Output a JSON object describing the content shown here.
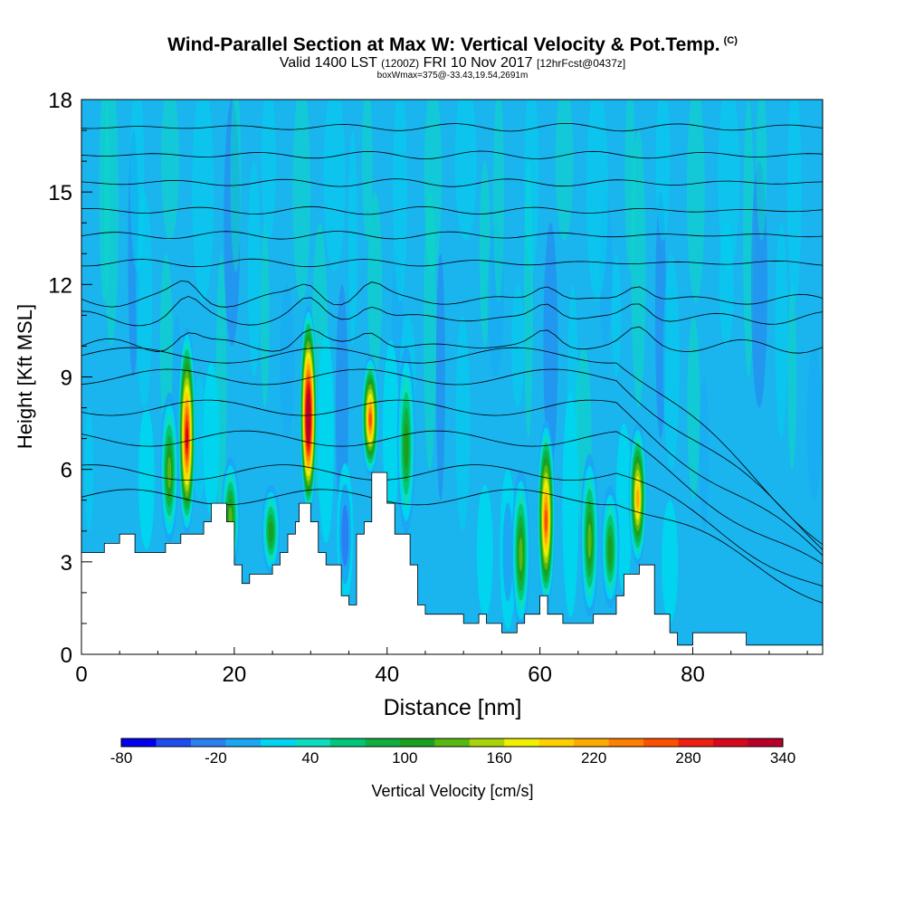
{
  "chart_data": {
    "type": "heatmap",
    "title": "Wind-Parallel Section at Max W: Vertical Velocity & Pot.Temp.",
    "copyright_mark": "(C)",
    "subtitle": {
      "valid": "Valid 1400 LST",
      "utc": "(1200Z)",
      "date": "FRI 10 Nov 2017",
      "forecast": "[12hrFcst@0437z]"
    },
    "subtitle2": "boxWmax=375@-33.43,19.54,2691m",
    "xlabel": "Distance [nm]",
    "ylabel": "Height [Kft MSL]",
    "xlim": [
      0,
      97
    ],
    "ylim": [
      0,
      18
    ],
    "x_ticks": [
      0,
      20,
      40,
      60,
      80
    ],
    "y_ticks": [
      0,
      3,
      6,
      9,
      12,
      15,
      18
    ],
    "colorbar": {
      "label": "Vertical Velocity [cm/s]",
      "tick_labels": [
        "-80",
        "-20",
        "40",
        "100",
        "160",
        "220",
        "280",
        "340"
      ],
      "colors": [
        "#0000ee",
        "#1e4cf0",
        "#2a80f2",
        "#1aa8f4",
        "#00d4ee",
        "#0cdcc0",
        "#00c878",
        "#10b040",
        "#18a020",
        "#58b810",
        "#a8d408",
        "#f0f000",
        "#ffd000",
        "#ffaa00",
        "#ff7f00",
        "#ff5000",
        "#ee2010",
        "#d8081c",
        "#b80028"
      ]
    },
    "background_color": "#1ab4ee",
    "terrain_color": "#ffffff",
    "terrain": {
      "x": [
        0,
        3,
        3,
        5,
        5,
        7,
        7,
        11,
        11,
        13,
        13,
        16,
        16,
        17,
        17,
        19,
        19,
        20,
        20,
        21,
        21,
        22,
        22,
        25,
        25,
        26,
        26,
        27,
        27,
        28,
        28,
        28.5,
        28.5,
        30,
        30,
        31,
        31,
        32,
        32,
        34,
        34,
        35,
        35,
        36,
        36,
        37,
        37,
        38,
        38,
        40,
        40,
        41,
        41,
        43,
        43,
        44,
        44,
        45,
        45,
        50,
        50,
        52,
        52,
        53,
        53,
        55,
        55,
        57,
        57,
        58,
        58,
        60,
        60,
        61,
        61,
        63,
        63,
        67,
        67,
        70,
        70,
        71,
        71,
        73,
        73,
        75,
        75,
        77,
        77,
        78,
        78,
        80,
        80,
        87,
        87,
        97
      ],
      "y": [
        3.3,
        3.3,
        3.6,
        3.6,
        3.9,
        3.9,
        3.3,
        3.3,
        3.6,
        3.6,
        3.9,
        3.9,
        4.3,
        4.3,
        4.9,
        4.9,
        4.3,
        4.3,
        2.9,
        2.9,
        2.3,
        2.3,
        2.6,
        2.6,
        2.9,
        2.9,
        3.3,
        3.3,
        3.9,
        3.9,
        4.3,
        4.3,
        4.9,
        4.9,
        4.3,
        4.3,
        3.3,
        3.3,
        2.9,
        2.9,
        1.9,
        1.9,
        1.6,
        1.6,
        3.9,
        3.9,
        4.3,
        4.3,
        5.9,
        5.9,
        4.9,
        4.9,
        3.9,
        3.9,
        2.9,
        2.9,
        1.6,
        1.6,
        1.3,
        1.3,
        1.0,
        1.0,
        1.3,
        1.3,
        1.0,
        1.0,
        0.7,
        0.7,
        1.0,
        1.0,
        1.3,
        1.3,
        1.9,
        1.9,
        1.3,
        1.3,
        1.0,
        1.0,
        1.3,
        1.3,
        1.9,
        1.9,
        2.6,
        2.6,
        2.9,
        2.9,
        1.3,
        1.3,
        0.7,
        0.7,
        0.3,
        0.3,
        0.7,
        0.7,
        0.3,
        0.3
      ]
    },
    "updraft_cores": [
      {
        "x": 13.8,
        "base": 3.9,
        "top": 10.6,
        "w": 245
      },
      {
        "x": 29.7,
        "base": 4.5,
        "top": 11.3,
        "w": 320
      },
      {
        "x": 37.8,
        "base": 5.8,
        "top": 9.7,
        "w": 200
      },
      {
        "x": 60.8,
        "base": 1.5,
        "top": 7.6,
        "w": 210
      },
      {
        "x": 72.8,
        "base": 2.9,
        "top": 7.5,
        "w": 175
      },
      {
        "x": 11.5,
        "base": 3.6,
        "top": 8.5,
        "w": 80
      },
      {
        "x": 19.5,
        "base": 2.6,
        "top": 6.4,
        "w": 80
      },
      {
        "x": 24.8,
        "base": 2.6,
        "top": 5.5,
        "w": 70
      },
      {
        "x": 42.5,
        "base": 3.9,
        "top": 10.0,
        "w": 70
      },
      {
        "x": 57.5,
        "base": 0.8,
        "top": 6.0,
        "w": 80
      },
      {
        "x": 66.5,
        "base": 1.2,
        "top": 6.5,
        "w": 80
      },
      {
        "x": 69.2,
        "base": 1.5,
        "top": 5.5,
        "w": 70
      }
    ],
    "downdraft_cores": [
      {
        "x": 34.5,
        "base": 1.7,
        "top": 6.2,
        "w": -70
      },
      {
        "x": 55.8,
        "base": 0.8,
        "top": 6.0,
        "w": -55
      },
      {
        "x": 8.5,
        "base": 3.4,
        "top": 8.0,
        "w": -25
      },
      {
        "x": 17.0,
        "base": 4.5,
        "top": 9.5,
        "w": -30
      },
      {
        "x": 32.0,
        "base": 3.6,
        "top": 10.5,
        "w": -30
      },
      {
        "x": 40.5,
        "base": 4.2,
        "top": 10.2,
        "w": -35
      },
      {
        "x": 52.8,
        "base": 1.2,
        "top": 5.5,
        "w": -25
      },
      {
        "x": 64.0,
        "base": 1.2,
        "top": 8.5,
        "w": -30
      },
      {
        "x": 71.0,
        "base": 2.0,
        "top": 7.5,
        "w": -30
      },
      {
        "x": 77.0,
        "base": 1.0,
        "top": 5.0,
        "w": -22
      }
    ],
    "isentropes": {
      "levels": [
        10,
        10.9,
        11.5,
        12.7,
        13.6,
        14.4,
        15.3,
        16.2,
        17.1
      ],
      "lower": [
        5.1,
        5.9,
        7.0,
        8.0,
        9.0,
        9.7
      ]
    }
  }
}
